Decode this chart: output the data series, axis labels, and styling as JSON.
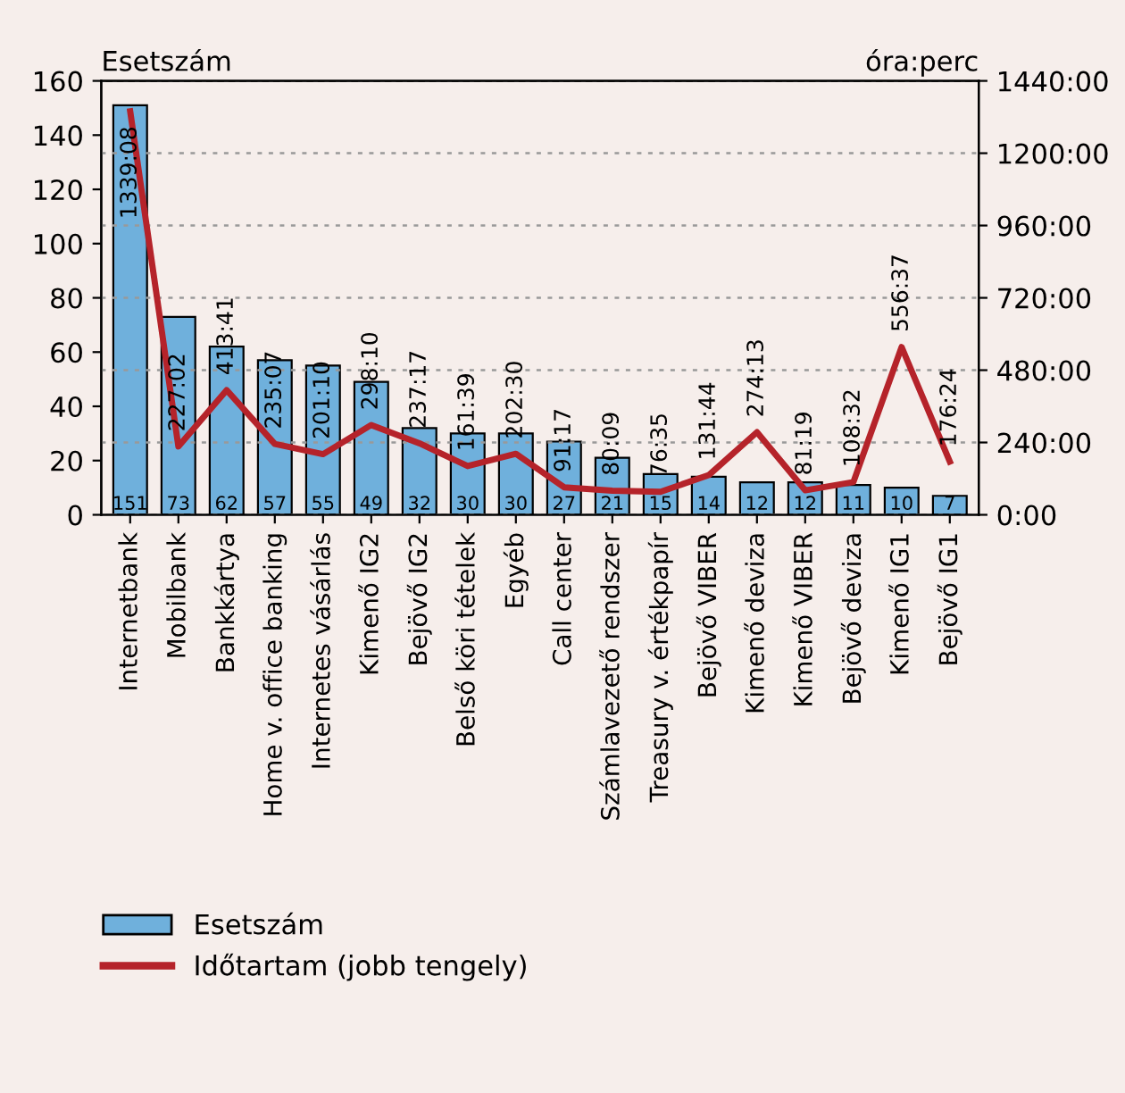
{
  "chart_data": {
    "type": "bar",
    "categories": [
      "Internetbank",
      "Mobilbank",
      "Bankkártya",
      "Home v. office banking",
      "Internetes vásárlás",
      "Kimenő IG2",
      "Bejövő IG2",
      "Belső köri tételek",
      "Egyéb",
      "Call center",
      "Számlavezető rendszer",
      "Treasury v. értékpapír",
      "Bejövő VIBER",
      "Kimenő deviza",
      "Kimenő VIBER",
      "Bejövő deviza",
      "Kimenő IG1",
      "Bejövő IG1"
    ],
    "series": [
      {
        "name": "Esetszám",
        "type": "bar",
        "color": "#6fb0dc",
        "values": [
          151,
          73,
          62,
          57,
          55,
          49,
          32,
          30,
          30,
          27,
          21,
          15,
          14,
          12,
          12,
          11,
          10,
          7
        ]
      },
      {
        "name": "Időtartam (jobb tengely)",
        "type": "line",
        "axis": "y2",
        "color": "#b5232a",
        "values": [
          1339.133,
          227.033,
          413.683,
          235.117,
          201.167,
          298.167,
          237.283,
          161.65,
          202.5,
          91.283,
          80.15,
          76.583,
          131.733,
          274.217,
          81.317,
          108.533,
          556.617,
          176.4
        ],
        "value_labels": [
          "1339:08",
          "227:02",
          "413:41",
          "235:07",
          "201:10",
          "298:10",
          "237:17",
          "161:39",
          "202:30",
          "91:17",
          "80:09",
          "76:35",
          "131:44",
          "274:13",
          "81:19",
          "108:32",
          "556:37",
          "176:24"
        ]
      }
    ],
    "data_labels": true,
    "ylabel": "Esetszám",
    "y2label": "óra:perc",
    "ylim": [
      0,
      160
    ],
    "yticks": [
      0,
      20,
      40,
      60,
      80,
      100,
      120,
      140,
      160
    ],
    "y2lim": [
      0,
      1440
    ],
    "y2ticks": [
      {
        "value": 0,
        "label": "0:00"
      },
      {
        "value": 240,
        "label": "240:00"
      },
      {
        "value": 480,
        "label": "480:00"
      },
      {
        "value": 720,
        "label": "720:00"
      },
      {
        "value": 960,
        "label": "960:00"
      },
      {
        "value": 1200,
        "label": "1200:00"
      },
      {
        "value": 1440,
        "label": "1440:00"
      }
    ],
    "grid": "y",
    "legend": "bottom left",
    "marker": "none",
    "line_style": "solid"
  }
}
